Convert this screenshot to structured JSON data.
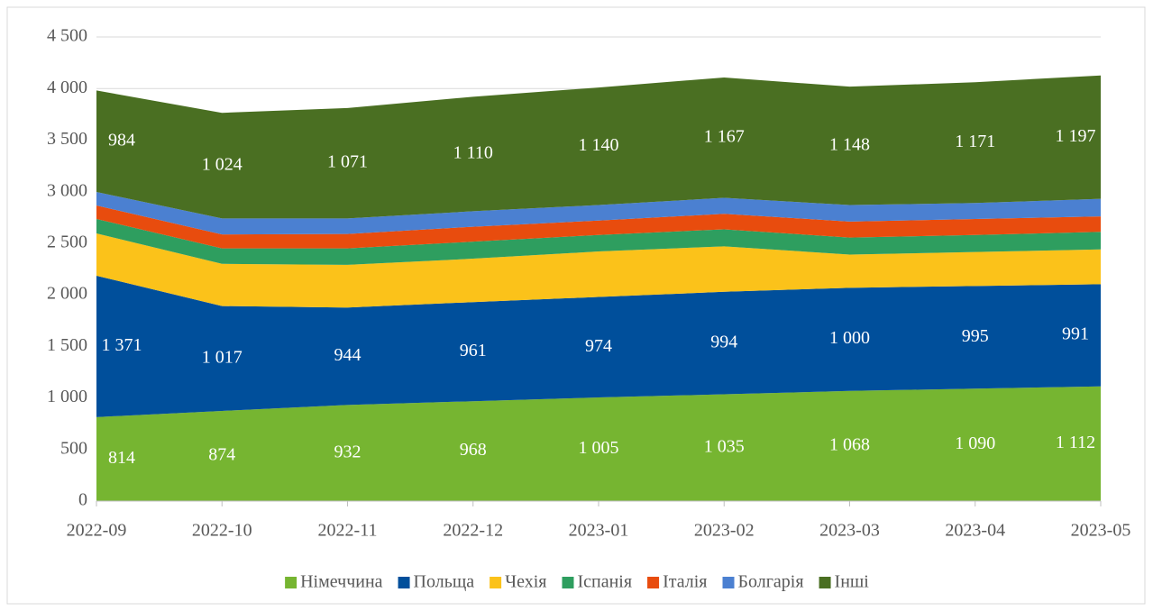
{
  "chart_data": {
    "type": "stacked_area",
    "categories": [
      "2022-09",
      "2022-10",
      "2022-11",
      "2022-12",
      "2023-01",
      "2023-02",
      "2023-03",
      "2023-04",
      "2023-05"
    ],
    "series": [
      {
        "name": "Німеччина",
        "color": "#76b531",
        "values": [
          814,
          874,
          932,
          968,
          1005,
          1035,
          1068,
          1090,
          1112
        ],
        "value_labels": [
          "814",
          "874",
          "932",
          "968",
          "1 005",
          "1 035",
          "1 068",
          "1 090",
          "1 112"
        ]
      },
      {
        "name": "Польща",
        "color": "#004f9b",
        "values": [
          1371,
          1017,
          944,
          961,
          974,
          994,
          1000,
          995,
          991
        ],
        "value_labels": [
          "1 371",
          "1 017",
          "944",
          "961",
          "974",
          "994",
          "1 000",
          "995",
          "991"
        ]
      },
      {
        "name": "Чехія",
        "color": "#fbc21a",
        "values": [
          410,
          409,
          414,
          421,
          441,
          441,
          322,
          330,
          337
        ]
      },
      {
        "name": "Іспанія",
        "color": "#2e9e5f",
        "values": [
          140,
          150,
          160,
          165,
          160,
          165,
          165,
          165,
          170
        ]
      },
      {
        "name": "Італія",
        "color": "#e84c0e",
        "values": [
          131,
          135,
          140,
          145,
          140,
          150,
          155,
          155,
          150
        ]
      },
      {
        "name": "Болгарія",
        "color": "#4b80d1",
        "values": [
          131,
          155,
          150,
          150,
          150,
          155,
          160,
          155,
          170
        ]
      },
      {
        "name": "Інші",
        "color": "#4a6f22",
        "values": [
          984,
          1024,
          1071,
          1110,
          1140,
          1167,
          1148,
          1171,
          1197
        ],
        "value_labels": [
          "984",
          "1 024",
          "1 071",
          "1 110",
          "1 140",
          "1 167",
          "1 148",
          "1 171",
          "1 197"
        ]
      }
    ],
    "ylim": [
      0,
      4500
    ],
    "yticks": [
      0,
      500,
      {
        "value": 1000,
        "label": "1 000"
      },
      {
        "value": 1500,
        "label": "1 500"
      },
      {
        "value": 2000,
        "label": "2 000"
      },
      {
        "value": 2500,
        "label": "2 500"
      },
      {
        "value": 3000,
        "label": "3 000"
      },
      {
        "value": 3500,
        "label": "3 500"
      },
      {
        "value": 4000,
        "label": "4 000"
      },
      {
        "value": 4500,
        "label": "4 500"
      }
    ],
    "grid": true,
    "legend": "bottom"
  }
}
